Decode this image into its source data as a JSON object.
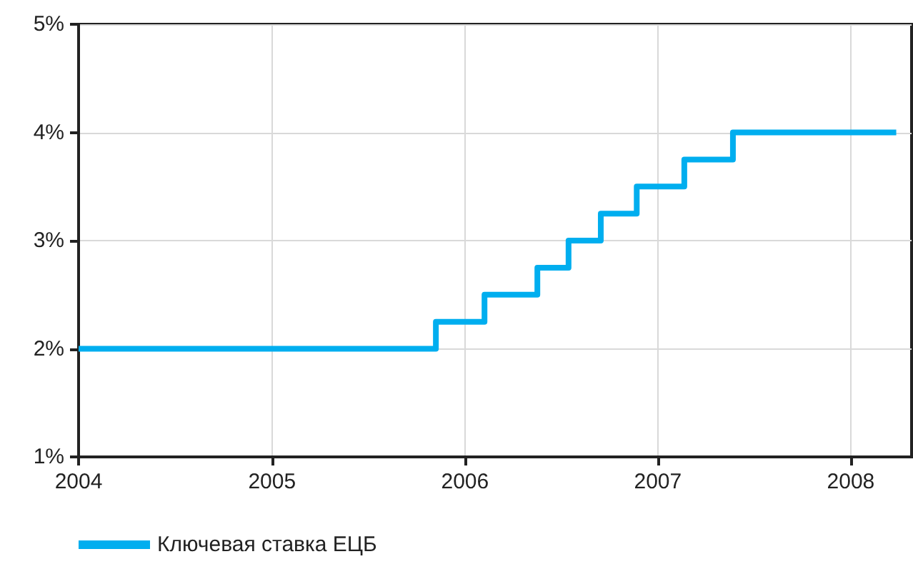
{
  "chart_data": {
    "type": "step",
    "x": [
      "2004-01-01",
      "2005-11-07",
      "2006-02-07",
      "2006-05-18",
      "2006-07-16",
      "2006-09-15",
      "2006-11-22",
      "2007-02-20",
      "2007-05-23",
      "2008-03-27"
    ],
    "series": [
      {
        "name": "Ключевая ставка ЕЦБ",
        "color": "#00aeef",
        "values": [
          2,
          2.25,
          2.5,
          2.75,
          3,
          3.25,
          3.5,
          3.75,
          4,
          4
        ]
      }
    ],
    "xlim": [
      "2004",
      "2008-04-25"
    ],
    "xticks": [
      "2004",
      "2005",
      "2006",
      "2007",
      "2008"
    ],
    "ylim": [
      1,
      5
    ],
    "yticks": [
      {
        "value": 1,
        "label": "1%"
      },
      {
        "value": 2,
        "label": "2%"
      },
      {
        "value": 3,
        "label": "3%"
      },
      {
        "value": 4,
        "label": "4%"
      },
      {
        "value": 5,
        "label": "5%"
      }
    ],
    "grid": true,
    "legend": "bottom left",
    "line_style": "solid",
    "marker": "none"
  }
}
